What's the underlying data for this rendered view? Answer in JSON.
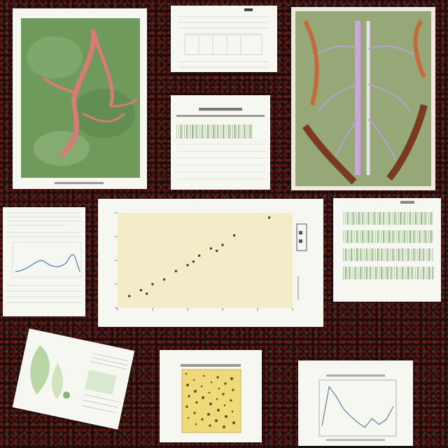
{
  "images": [
    {
      "id": "leaf-artery",
      "icon": "branching-vessel-illustration"
    },
    {
      "id": "dissection",
      "icon": "anatomical-dissection-illustration"
    }
  ],
  "colors": {
    "background": "#1a0d0c",
    "paper": "#f7f7f2",
    "leaf_green": "#6f9a5c",
    "vessel_pink": "#d97a78",
    "plot_bg": "#f4ecc8",
    "bar_green": "#8cb27a"
  },
  "scatter": {
    "type": "scatter",
    "points": [
      {
        "x": 1,
        "y": 1
      },
      {
        "x": 2,
        "y": 1.5
      },
      {
        "x": 3,
        "y": 2
      },
      {
        "x": 4,
        "y": 2.4
      },
      {
        "x": 5,
        "y": 3.1
      },
      {
        "x": 6,
        "y": 3.6
      },
      {
        "x": 7,
        "y": 4.4
      },
      {
        "x": 8,
        "y": 5
      },
      {
        "x": 9,
        "y": 5.3
      },
      {
        "x": 10,
        "y": 6.1
      },
      {
        "x": 13,
        "y": 7.6
      },
      {
        "x": 2.5,
        "y": 1.2
      },
      {
        "x": 6.5,
        "y": 3.9
      },
      {
        "x": 8.5,
        "y": 4.8
      }
    ],
    "xlim": [
      0,
      15
    ],
    "ylim": [
      0,
      8
    ]
  },
  "peak_line": {
    "type": "line",
    "values": [
      0.15,
      0.95,
      0.75,
      0.5,
      0.35,
      0.22,
      0.12,
      0.3,
      0.18,
      0.28,
      0.55
    ]
  }
}
